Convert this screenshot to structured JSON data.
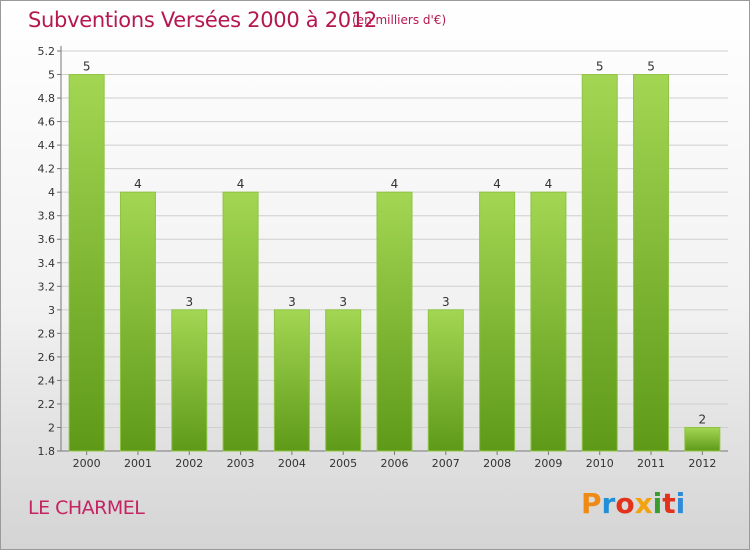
{
  "header": {
    "title": "Subventions Versées 2000 à 2012",
    "subtitle": "(en milliers d'€)"
  },
  "footer": {
    "commune": "LE CHARMEL",
    "logo_text": "Proxiti",
    "logo_colors": [
      "#f08a16",
      "#1e8fd8",
      "#e3311b",
      "#f2a20f",
      "#3a9b2e",
      "#e3311b",
      "#2f8ad8"
    ]
  },
  "colors": {
    "title": "#b5174f",
    "bar_light": "#9ed24e",
    "bar_dark": "#5f9c19",
    "grid": "#cfcfcf"
  },
  "chart_data": {
    "type": "bar",
    "title": "Subventions Versées 2000 à 2012",
    "subtitle": "(en milliers d'€)",
    "categories": [
      "2000",
      "2001",
      "2002",
      "2003",
      "2004",
      "2005",
      "2006",
      "2007",
      "2008",
      "2009",
      "2010",
      "2011",
      "2012"
    ],
    "values": [
      5.0,
      4.0,
      3.0,
      4.0,
      3.0,
      3.0,
      4.0,
      3.0,
      4.0,
      4.0,
      5.0,
      5.0,
      2.0
    ],
    "data_labels": [
      "5",
      "4",
      "3",
      "4",
      "3",
      "3",
      "4",
      "3",
      "4",
      "4",
      "5",
      "5",
      "2"
    ],
    "ylim": [
      1.8,
      5.2
    ],
    "yticks": [
      "1.8",
      "2",
      "2.2",
      "2.4",
      "2.6",
      "2.8",
      "3",
      "3.2",
      "3.4",
      "3.6",
      "3.8",
      "4",
      "4.2",
      "4.4",
      "4.6",
      "4.8",
      "5",
      "5.2"
    ],
    "grid": "horizontal"
  }
}
